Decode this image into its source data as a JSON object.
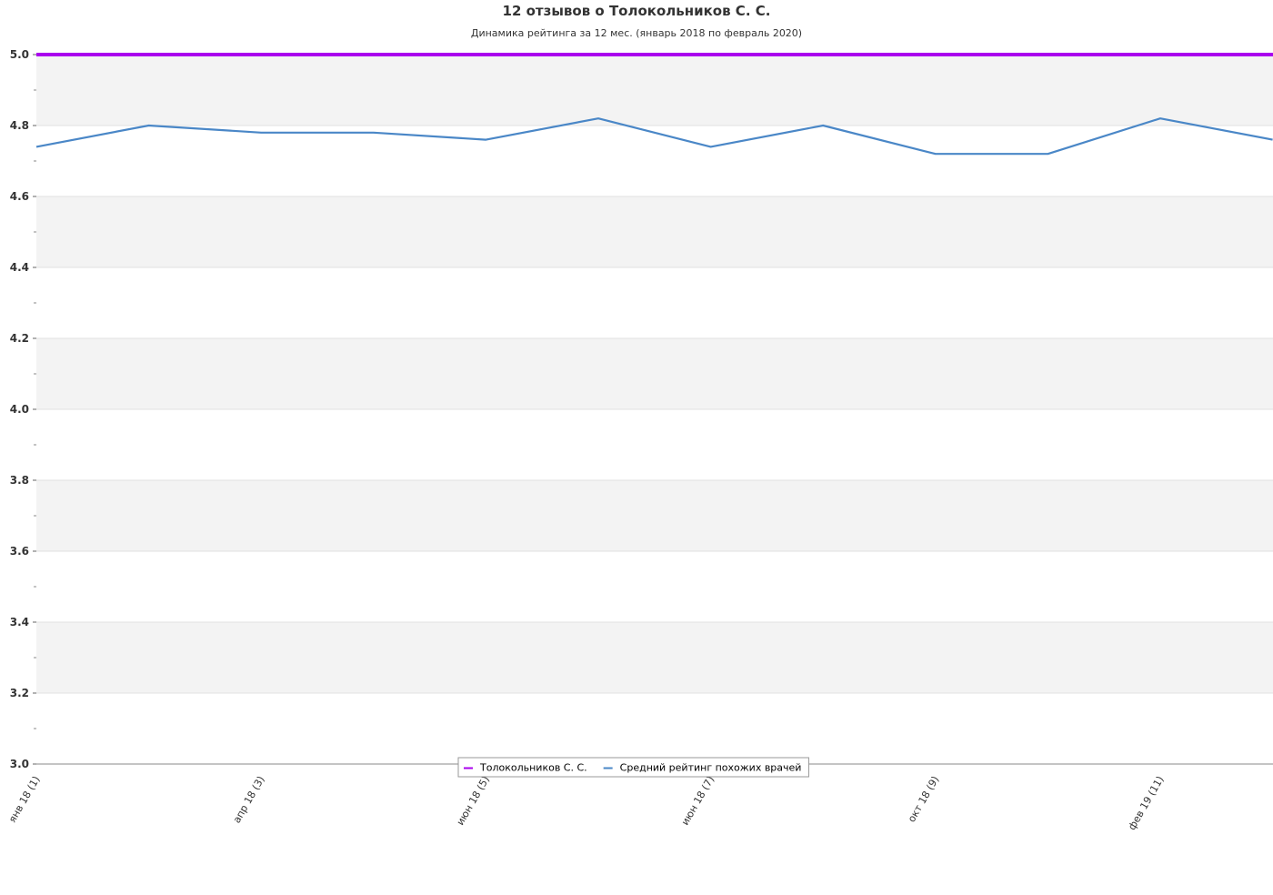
{
  "chart_data": {
    "type": "line",
    "title": "12 отзывов о Толокольников С. С.",
    "subtitle": "Динамика рейтинга за 12 мес. (январь 2018 по февраль 2020)",
    "xlabel": "",
    "ylabel": "",
    "ylim": [
      3.0,
      5.0
    ],
    "y_ticks": [
      3.0,
      3.2,
      3.4,
      3.6,
      3.8,
      4.0,
      4.2,
      4.4,
      4.6,
      4.8,
      5.0
    ],
    "y_tick_labels": [
      "3.0",
      "3.2",
      "3.4",
      "3.6",
      "3.8",
      "4.0",
      "4.2",
      "4.4",
      "4.6",
      "4.8",
      "5.0"
    ],
    "alternating_bands": true,
    "categories_count": 12,
    "x_tick_labels": [
      {
        "index": 0,
        "label": "янв 18 (1)"
      },
      {
        "index": 2,
        "label": "апр 18 (3)"
      },
      {
        "index": 4,
        "label": "июн 18 (5)"
      },
      {
        "index": 6,
        "label": "июн 18 (7)"
      },
      {
        "index": 8,
        "label": "окт 18 (9)"
      },
      {
        "index": 10,
        "label": "фев 19 (11)"
      }
    ],
    "series": [
      {
        "name": "Толокольников С. С.",
        "color": "#aa00ee",
        "values": [
          5.0,
          5.0,
          5.0,
          5.0,
          5.0,
          5.0,
          5.0,
          5.0,
          5.0,
          5.0,
          5.0,
          5.0
        ]
      },
      {
        "name": "Средний рейтинг похожих врачей",
        "color": "#4a87c7",
        "values": [
          4.74,
          4.8,
          4.78,
          4.78,
          4.76,
          4.82,
          4.74,
          4.8,
          4.72,
          4.72,
          4.82,
          4.76
        ]
      }
    ],
    "legend": {
      "position": "bottom-center"
    },
    "colors": {
      "band": "#f3f3f3",
      "gridline": "#e0e0e0",
      "axis": "#888888",
      "text": "#333333"
    }
  }
}
